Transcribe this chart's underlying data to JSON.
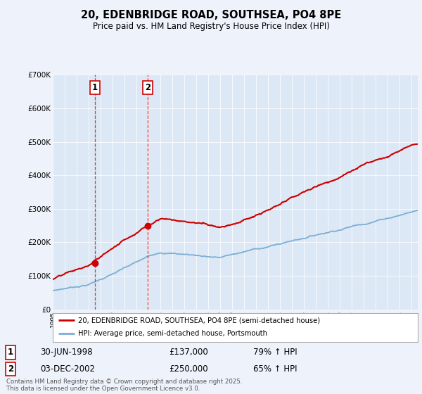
{
  "title": "20, EDENBRIDGE ROAD, SOUTHSEA, PO4 8PE",
  "subtitle": "Price paid vs. HM Land Registry's House Price Index (HPI)",
  "yticks": [
    0,
    100000,
    200000,
    300000,
    400000,
    500000,
    600000,
    700000
  ],
  "background_color": "#eef2fb",
  "plot_bg_color": "#dce8f5",
  "red_line_color": "#cc0000",
  "blue_line_color": "#7bafd4",
  "marker_color": "#cc0000",
  "vline_color": "#cc0000",
  "sale1_x": 1998.5,
  "sale1_y": 137000,
  "sale1_label": "1",
  "sale1_date": "30-JUN-1998",
  "sale1_price": "£137,000",
  "sale1_hpi": "79% ↑ HPI",
  "sale2_x": 2002.92,
  "sale2_y": 250000,
  "sale2_label": "2",
  "sale2_date": "03-DEC-2002",
  "sale2_price": "£250,000",
  "sale2_hpi": "65% ↑ HPI",
  "legend_line1": "20, EDENBRIDGE ROAD, SOUTHSEA, PO4 8PE (semi-detached house)",
  "legend_line2": "HPI: Average price, semi-detached house, Portsmouth",
  "footer": "Contains HM Land Registry data © Crown copyright and database right 2025.\nThis data is licensed under the Open Government Licence v3.0.",
  "xmin": 1995,
  "xmax": 2025.5,
  "ymin": 0,
  "ymax": 700000
}
